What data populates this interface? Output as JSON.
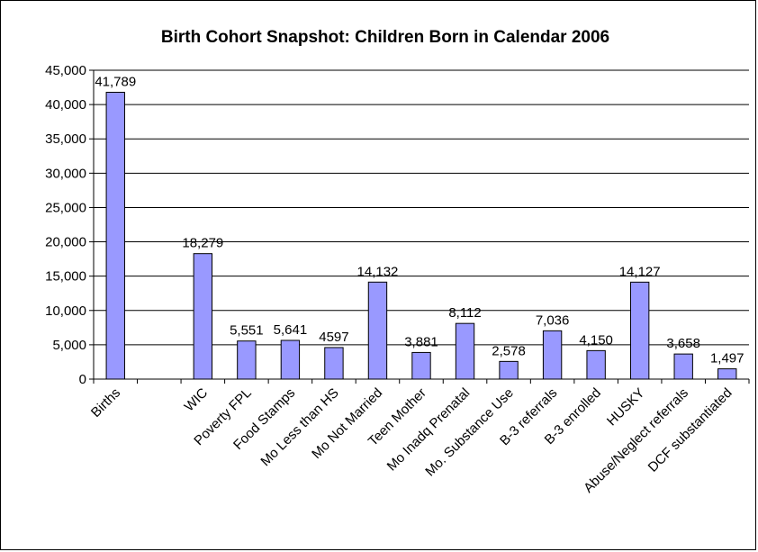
{
  "chart_data": {
    "type": "bar",
    "title": "Birth Cohort Snapshot: Children Born in Calendar 2006",
    "xlabel": "",
    "ylabel": "",
    "ylim": [
      0,
      45000
    ],
    "yticks": [
      "0",
      "5,000",
      "10,000",
      "15,000",
      "20,000",
      "25,000",
      "30,000",
      "35,000",
      "40,000",
      "45,000"
    ],
    "grid": true,
    "bar_color": "#9999ff",
    "categories": [
      "Births",
      "",
      "WIC",
      "Poverty FPL",
      "Food Stamps",
      "Mo Less than HS",
      "Mo Not Married",
      "Teen Mother",
      "Mo Inadq Prenatal",
      "Mo. Substance Use",
      "B-3 referrals",
      "B-3 enrolled",
      "HUSKY",
      "Abuse/Neglect referrals",
      "DCF substantiated"
    ],
    "values": [
      41789,
      null,
      18279,
      5551,
      5641,
      4597,
      14132,
      3881,
      8112,
      2578,
      7036,
      4150,
      14127,
      3658,
      1497
    ],
    "data_labels": [
      "41,789",
      "",
      "18,279",
      "5,551",
      "5,641",
      "4597",
      "14,132",
      "3,881",
      "8,112",
      "2,578",
      "7,036",
      "4,150",
      "14,127",
      "3,658",
      "1,497"
    ]
  }
}
